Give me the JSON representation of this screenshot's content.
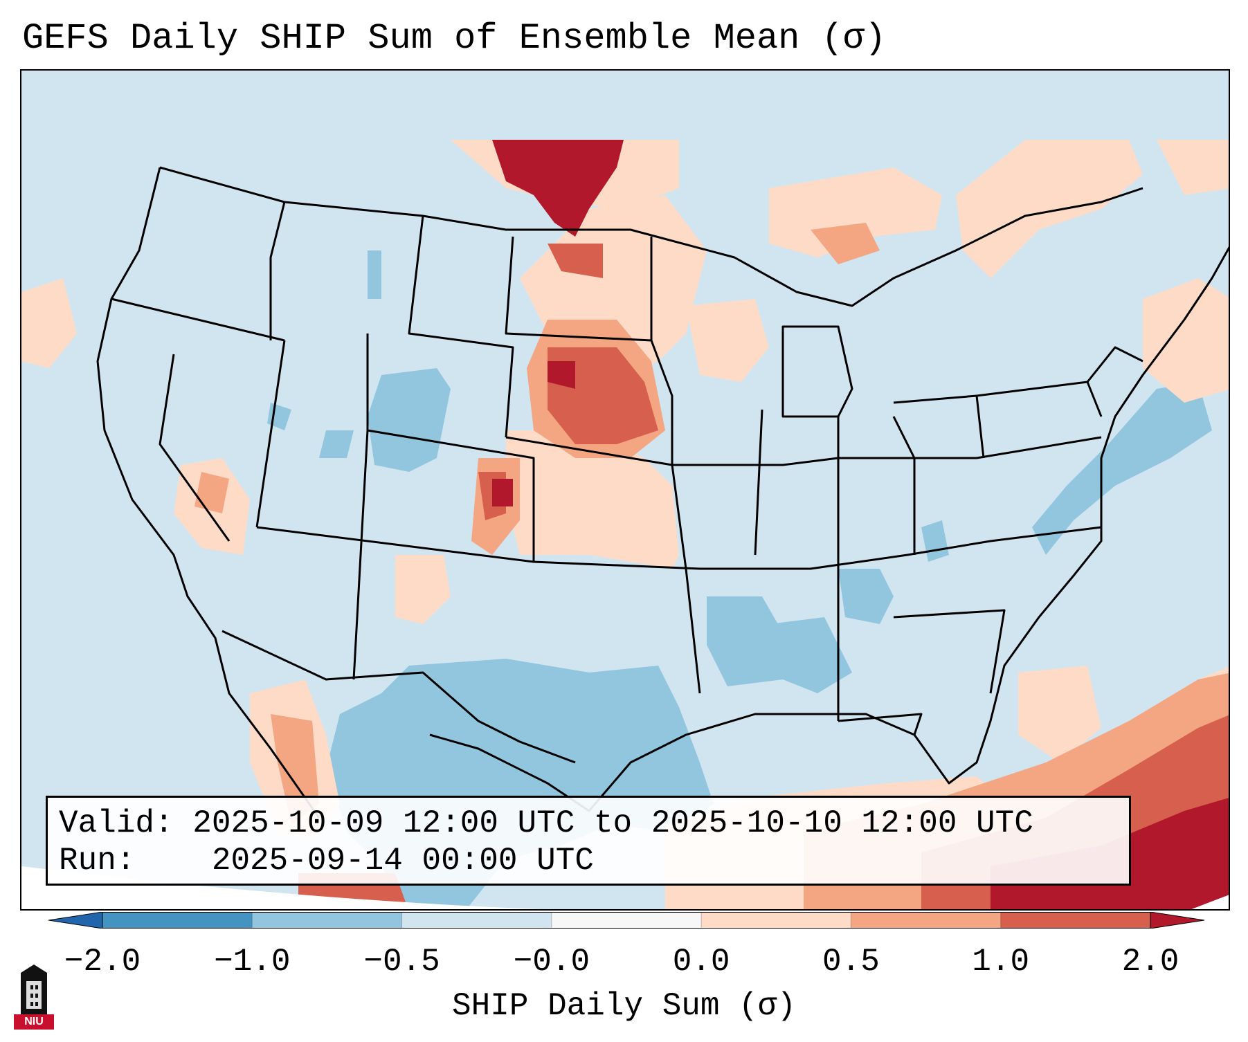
{
  "title": "GEFS Daily SHIP Sum of Ensemble Mean (σ)",
  "info": {
    "valid_label": "Valid:",
    "valid_value": "2025-10-09 12:00 UTC to 2025-10-10 12:00 UTC",
    "run_label": "Run:",
    "run_value": "2025-09-14 00:00 UTC"
  },
  "colorbar": {
    "label": "SHIP Daily Sum (σ)",
    "ticks": [
      "−2.0",
      "−1.0",
      "−0.5",
      "−0.0",
      "0.0",
      "0.5",
      "1.0",
      "2.0"
    ],
    "colors": [
      "#2166ac",
      "#4393c3",
      "#92c5de",
      "#d1e5f0",
      "#f7f7f7",
      "#fddbc7",
      "#f4a582",
      "#d6604d",
      "#b2182b"
    ],
    "extend": "both"
  },
  "logo": {
    "text": "NIU"
  }
}
